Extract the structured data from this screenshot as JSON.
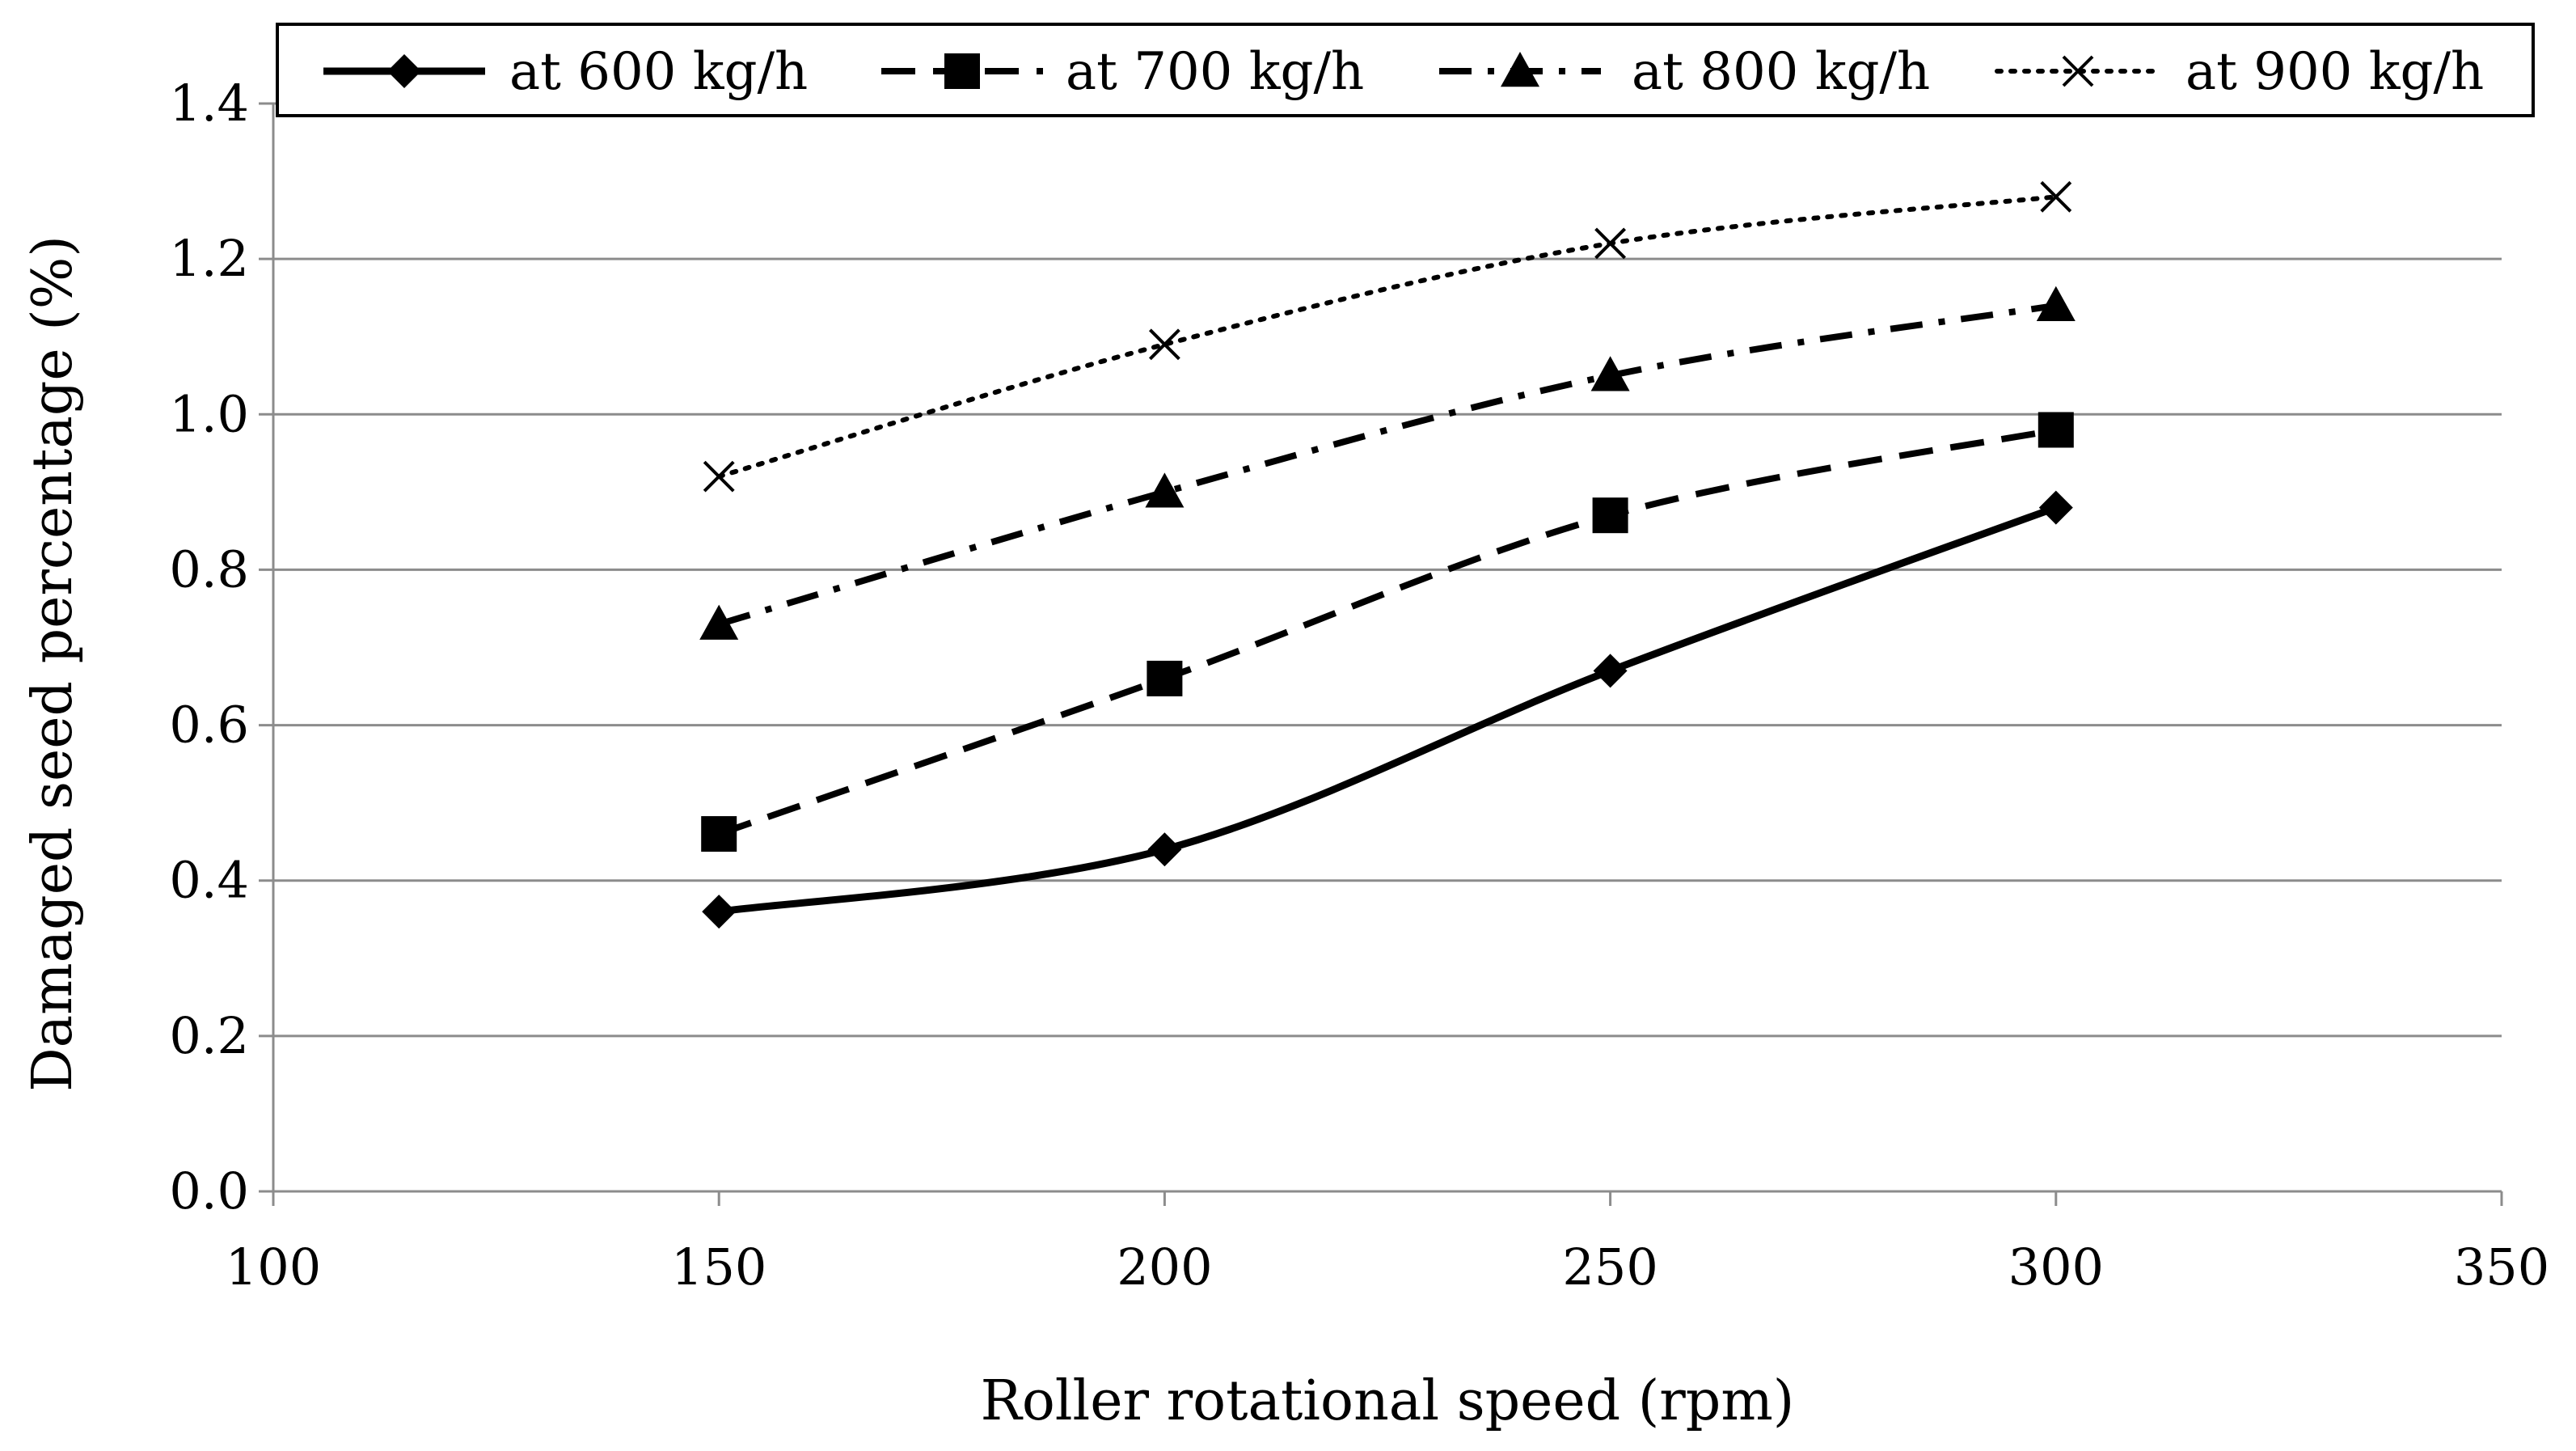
{
  "chart_data": {
    "type": "line",
    "title": "",
    "xlabel": "Roller rotational speed (rpm)",
    "ylabel": "Damaged seed percentage (%)",
    "xlim": [
      100,
      350
    ],
    "ylim": [
      0.0,
      1.4
    ],
    "x_ticks": [
      100,
      150,
      200,
      250,
      300,
      350
    ],
    "x_tick_labels": [
      "100",
      "150",
      "200",
      "250",
      "300",
      "350"
    ],
    "y_ticks": [
      0.0,
      0.2,
      0.4,
      0.6,
      0.8,
      1.0,
      1.2,
      1.4
    ],
    "y_tick_labels": [
      "0.0",
      "0.2",
      "0.4",
      "0.6",
      "0.8",
      "1.0",
      "1.2",
      "1.4"
    ],
    "grid": "horizontal",
    "legend_position": "top",
    "x": [
      150,
      200,
      250,
      300
    ],
    "series": [
      {
        "name": "at 600 kg/h",
        "values": [
          0.36,
          0.44,
          0.67,
          0.88
        ],
        "line_style": "solid",
        "marker": "diamond"
      },
      {
        "name": "at 700 kg/h",
        "values": [
          0.46,
          0.66,
          0.87,
          0.98
        ],
        "line_style": "dashed",
        "marker": "square"
      },
      {
        "name": "at 800 kg/h",
        "values": [
          0.73,
          0.9,
          1.05,
          1.14
        ],
        "line_style": "dash-dot",
        "marker": "triangle"
      },
      {
        "name": "at 900 kg/h",
        "values": [
          0.92,
          1.09,
          1.22,
          1.28
        ],
        "line_style": "dotted",
        "marker": "x"
      }
    ]
  }
}
